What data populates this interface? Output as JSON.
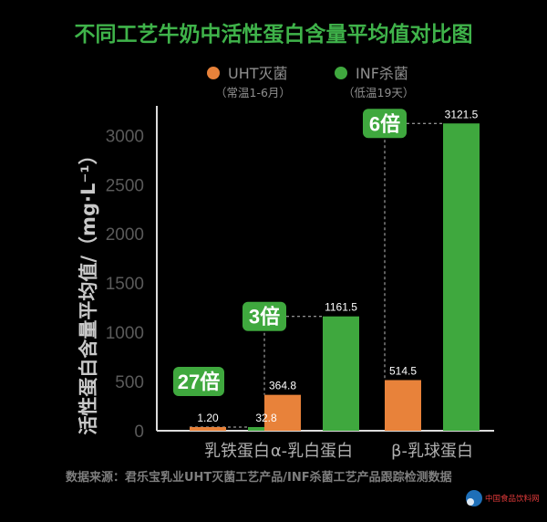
{
  "title": "不同工艺牛奶中活性蛋白含量平均值对比图",
  "source": "数据来源：君乐宝乳业UHT灭菌工艺产品/INF杀菌工艺产品跟踪检测数据",
  "watermark": "中国食品饮料网",
  "colors": {
    "title": "#3fb34a",
    "uht": "#e8823a",
    "inf": "#3fa83e",
    "badge": "#3fa83e",
    "axis": "#dcdcdc"
  },
  "chart_data": {
    "type": "bar",
    "ylabel": "活性蛋白含量平均值/（mg·L⁻¹）",
    "ylim": [
      0,
      3300
    ],
    "yticks": [
      0,
      500,
      1000,
      1500,
      2000,
      2500,
      3000
    ],
    "categories": [
      "乳铁蛋白",
      "α-乳白蛋白",
      "β-乳球蛋白"
    ],
    "series": [
      {
        "name": "UHT灭菌",
        "note": "（常温1-6月）",
        "values": [
          1.2,
          364.8,
          514.5
        ],
        "labels": [
          "1.20",
          "364.8",
          "514.5"
        ],
        "color": "#e8823a"
      },
      {
        "name": "INF杀菌",
        "note": "（低温19天）",
        "values": [
          32.8,
          1161.5,
          3121.5
        ],
        "labels": [
          "32.8",
          "1161.5",
          "3121.5"
        ],
        "color": "#3fa83e"
      }
    ],
    "ratios": [
      "27倍",
      "3倍",
      "6倍"
    ],
    "legend_position": "top"
  }
}
